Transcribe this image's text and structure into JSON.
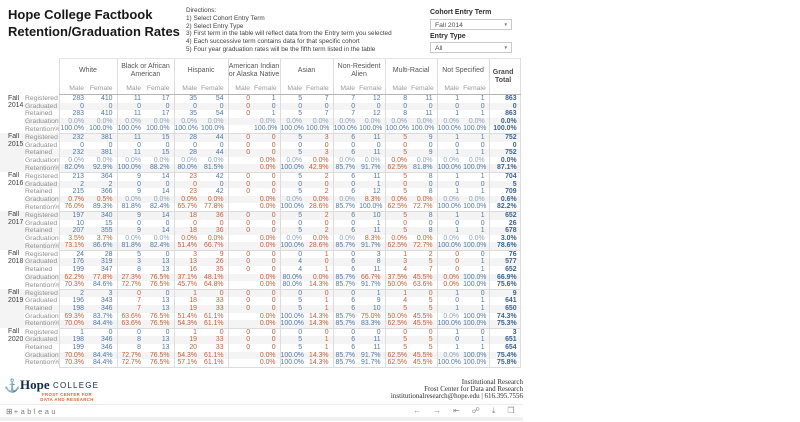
{
  "title": {
    "line1": "Hope College Factbook",
    "line2": "Retention/Graduation Rates"
  },
  "directions": {
    "heading": "Directions:",
    "lines": [
      "1) Select Cohort Entry Term",
      "2) Select Entry Type",
      "3) First term in the table will reflect data from the Entry term you selected",
      "4) Each successive term contains data for that specific cohort",
      "5) Four year graduation rates will be the fifth term listed in the table"
    ]
  },
  "filters": [
    {
      "label": "Cohort Entry Term",
      "value": "Fall 2014"
    },
    {
      "label": "Entry Type",
      "value": "All"
    }
  ],
  "table": {
    "groups": [
      "White",
      "Black or African American",
      "Hispanic",
      "American Indian or Alaska Native",
      "Asian",
      "Non-Resident Alien",
      "Multi-Racial",
      "Not Specified"
    ],
    "subheaders": [
      "Male",
      "Female"
    ],
    "grand_label": "Grand Total",
    "metrics": [
      "Registered",
      "Graduated",
      "Retained",
      "Graduation%",
      "Retention%"
    ],
    "blocks": [
      {
        "term": "Fall",
        "year": "2014",
        "registered": [
          283,
          410,
          11,
          17,
          35,
          54,
          0,
          1,
          5,
          7,
          7,
          12,
          8,
          11,
          1,
          1,
          863
        ],
        "graduated": [
          0,
          0,
          0,
          0,
          0,
          0,
          0,
          0,
          0,
          0,
          0,
          0,
          0,
          0,
          0,
          0,
          0
        ],
        "retained": [
          283,
          410,
          11,
          17,
          35,
          54,
          0,
          1,
          5,
          7,
          7,
          12,
          8,
          11,
          1,
          1,
          863
        ],
        "graduation_pct": [
          "0.0%",
          "0.0%",
          "0.0%",
          "0.0%",
          "0.0%",
          "0.0%",
          "",
          "0.0%",
          "0.0%",
          "0.0%",
          "0.0%",
          "0.0%",
          "0.0%",
          "0.0%",
          "0.0%",
          "0.0%",
          "0.0%"
        ],
        "retention_pct": [
          "100.0%",
          "100.0%",
          "100.0%",
          "100.0%",
          "100.0%",
          "100.0%",
          "",
          "100.0%",
          "100.0%",
          "100.0%",
          "100.0%",
          "100.0%",
          "100.0%",
          "100.0%",
          "100.0%",
          "100.0%",
          "100.0%"
        ]
      },
      {
        "term": "Fall",
        "year": "2015",
        "registered": [
          232,
          381,
          11,
          15,
          28,
          44,
          0,
          0,
          5,
          3,
          6,
          11,
          5,
          9,
          1,
          1,
          752
        ],
        "graduated": [
          0,
          0,
          0,
          0,
          0,
          0,
          0,
          0,
          0,
          0,
          0,
          0,
          0,
          0,
          0,
          0,
          0
        ],
        "retained": [
          232,
          381,
          11,
          15,
          28,
          44,
          0,
          0,
          5,
          3,
          6,
          11,
          5,
          9,
          1,
          1,
          752
        ],
        "graduation_pct": [
          "0.0%",
          "0.0%",
          "0.0%",
          "0.0%",
          "0.0%",
          "0.0%",
          "",
          "0.0%",
          "0.0%",
          "0.0%",
          "0.0%",
          "0.0%",
          "0.0%",
          "0.0%",
          "0.0%",
          "0.0%",
          "0.0%"
        ],
        "retention_pct": [
          "82.0%",
          "92.9%",
          "100.0%",
          "88.2%",
          "80.0%",
          "81.5%",
          "",
          "0.0%",
          "100.0%",
          "42.9%",
          "85.7%",
          "91.7%",
          "62.5%",
          "81.8%",
          "100.0%",
          "100.0%",
          "87.1%"
        ]
      },
      {
        "term": "Fall",
        "year": "2016",
        "registered": [
          213,
          364,
          9,
          14,
          23,
          42,
          0,
          0,
          5,
          2,
          6,
          11,
          5,
          8,
          1,
          1,
          704
        ],
        "graduated": [
          2,
          2,
          0,
          0,
          0,
          0,
          0,
          0,
          0,
          0,
          0,
          1,
          0,
          0,
          0,
          0,
          5
        ],
        "retained": [
          215,
          366,
          9,
          14,
          23,
          42,
          0,
          0,
          5,
          2,
          6,
          12,
          5,
          8,
          1,
          1,
          709
        ],
        "graduation_pct": [
          "0.7%",
          "0.5%",
          "0.0%",
          "0.0%",
          "0.0%",
          "0.0%",
          "",
          "0.0%",
          "0.0%",
          "0.0%",
          "0.0%",
          "8.3%",
          "0.0%",
          "0.0%",
          "0.0%",
          "0.0%",
          "0.6%"
        ],
        "retention_pct": [
          "76.0%",
          "89.3%",
          "81.8%",
          "82.4%",
          "65.7%",
          "77.8%",
          "",
          "0.0%",
          "100.0%",
          "28.6%",
          "85.7%",
          "100.0%",
          "62.5%",
          "72.7%",
          "100.0%",
          "100.0%",
          "82.2%"
        ]
      },
      {
        "term": "Fall",
        "year": "2017",
        "registered": [
          197,
          340,
          9,
          14,
          18,
          36,
          0,
          0,
          5,
          2,
          6,
          10,
          5,
          8,
          1,
          1,
          652
        ],
        "graduated": [
          10,
          15,
          0,
          0,
          0,
          0,
          0,
          0,
          0,
          0,
          0,
          1,
          0,
          0,
          0,
          0,
          26
        ],
        "retained": [
          207,
          355,
          9,
          14,
          18,
          36,
          0,
          0,
          5,
          2,
          6,
          11,
          5,
          8,
          1,
          1,
          678
        ],
        "graduation_pct": [
          "3.5%",
          "3.7%",
          "0.0%",
          "0.0%",
          "0.0%",
          "0.0%",
          "",
          "0.0%",
          "0.0%",
          "0.0%",
          "0.0%",
          "8.3%",
          "0.0%",
          "0.0%",
          "0.0%",
          "0.0%",
          "3.0%"
        ],
        "retention_pct": [
          "73.1%",
          "86.6%",
          "81.8%",
          "82.4%",
          "51.4%",
          "66.7%",
          "",
          "0.0%",
          "100.0%",
          "28.6%",
          "85.7%",
          "91.7%",
          "62.5%",
          "72.7%",
          "100.0%",
          "100.0%",
          "78.6%"
        ]
      },
      {
        "term": "Fall",
        "year": "2018",
        "registered": [
          24,
          28,
          5,
          0,
          3,
          9,
          0,
          0,
          0,
          1,
          0,
          3,
          1,
          2,
          0,
          0,
          76
        ],
        "graduated": [
          176,
          319,
          3,
          13,
          13,
          26,
          0,
          0,
          4,
          0,
          6,
          8,
          3,
          5,
          0,
          1,
          577
        ],
        "retained": [
          199,
          347,
          8,
          13,
          16,
          35,
          0,
          0,
          4,
          1,
          6,
          11,
          4,
          7,
          0,
          1,
          652
        ],
        "graduation_pct": [
          "62.2%",
          "77.8%",
          "27.3%",
          "76.5%",
          "37.1%",
          "48.1%",
          "",
          "0.0%",
          "80.0%",
          "0.0%",
          "85.7%",
          "66.7%",
          "37.5%",
          "45.5%",
          "0.0%",
          "100.0%",
          "66.9%"
        ],
        "retention_pct": [
          "70.3%",
          "84.6%",
          "72.7%",
          "76.5%",
          "45.7%",
          "64.8%",
          "",
          "0.0%",
          "80.0%",
          "14.3%",
          "85.7%",
          "91.7%",
          "50.0%",
          "63.6%",
          "0.0%",
          "100.0%",
          "75.6%"
        ]
      },
      {
        "term": "Fall",
        "year": "2019",
        "registered": [
          2,
          3,
          0,
          0,
          1,
          0,
          0,
          0,
          0,
          0,
          0,
          1,
          1,
          0,
          1,
          0,
          9
        ],
        "graduated": [
          196,
          343,
          7,
          13,
          18,
          33,
          0,
          0,
          5,
          1,
          6,
          9,
          4,
          5,
          0,
          1,
          641
        ],
        "retained": [
          198,
          346,
          7,
          13,
          19,
          33,
          0,
          0,
          5,
          1,
          6,
          10,
          5,
          5,
          1,
          1,
          650
        ],
        "graduation_pct": [
          "69.3%",
          "83.7%",
          "63.6%",
          "76.5%",
          "51.4%",
          "61.1%",
          "",
          "0.0%",
          "100.0%",
          "14.3%",
          "85.7%",
          "75.0%",
          "50.0%",
          "45.5%",
          "0.0%",
          "100.0%",
          "74.3%"
        ],
        "retention_pct": [
          "70.0%",
          "84.4%",
          "63.6%",
          "76.5%",
          "54.3%",
          "61.1%",
          "",
          "0.0%",
          "100.0%",
          "14.3%",
          "85.7%",
          "83.3%",
          "62.5%",
          "45.5%",
          "100.0%",
          "100.0%",
          "75.3%"
        ]
      },
      {
        "term": "Fall",
        "year": "2020",
        "registered": [
          1,
          0,
          0,
          0,
          1,
          0,
          0,
          0,
          0,
          0,
          0,
          0,
          0,
          0,
          1,
          0,
          3
        ],
        "graduated": [
          198,
          346,
          8,
          13,
          19,
          33,
          0,
          0,
          5,
          1,
          6,
          11,
          5,
          5,
          0,
          1,
          651
        ],
        "retained": [
          199,
          346,
          8,
          13,
          20,
          33,
          0,
          0,
          5,
          1,
          6,
          11,
          5,
          5,
          1,
          1,
          654
        ],
        "graduation_pct": [
          "70.0%",
          "84.4%",
          "72.7%",
          "76.5%",
          "54.3%",
          "61.1%",
          "",
          "0.0%",
          "100.0%",
          "14.3%",
          "85.7%",
          "91.7%",
          "62.5%",
          "45.5%",
          "0.0%",
          "100.0%",
          "75.4%"
        ],
        "retention_pct": [
          "70.3%",
          "84.4%",
          "72.7%",
          "76.5%",
          "57.1%",
          "61.1%",
          "",
          "0.0%",
          "100.0%",
          "14.3%",
          "85.7%",
          "91.7%",
          "62.5%",
          "45.5%",
          "100.0%",
          "100.0%",
          "75.8%"
        ]
      }
    ]
  },
  "footer": {
    "logo": {
      "name": "Hope",
      "college": "COLLEGE",
      "sub1": "FROST CENTER FOR",
      "sub2": "DATA AND RESEARCH"
    },
    "contact": [
      "Institutional Research",
      "Frost Center for Data and Research",
      "institutionalresearch@hope.edu | 616.395.7556"
    ]
  },
  "toolbar": {
    "logo_glyph": "⊞",
    "logo_text": "+ableau",
    "icons": [
      "←",
      "→",
      "⇤",
      "☍",
      "⤓",
      "❒"
    ],
    "icon_names": [
      "undo-icon",
      "redo-icon",
      "reset-icon",
      "share-icon",
      "download-icon",
      "fullscreen-icon"
    ]
  },
  "colors": {
    "blue": "#4e79a7",
    "orange": "#c65f38",
    "gray_blue": "#8da3bb",
    "grand": "#3a648f",
    "hope_navy": "#13294b",
    "hope_orange": "#e8612c"
  }
}
